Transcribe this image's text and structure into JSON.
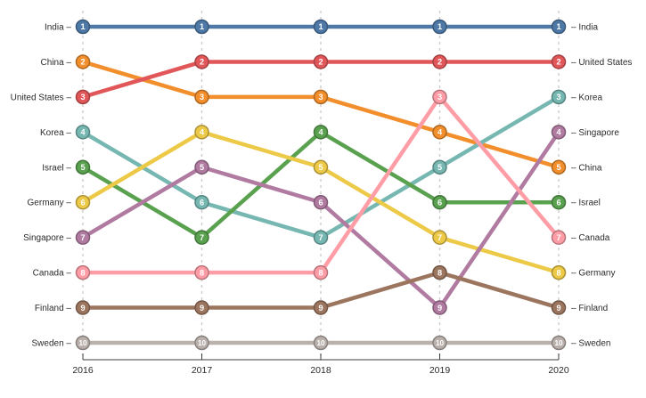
{
  "canvas": {
    "background": "#ffffff"
  },
  "chart_data": {
    "type": "line",
    "variant": "bump-rank-chart",
    "title": "",
    "x_labels": [
      "2016",
      "2017",
      "2018",
      "2019",
      "2020"
    ],
    "y_axis": {
      "label": "",
      "type": "rank",
      "range": [
        1,
        10
      ],
      "inverted": true,
      "ticks_hidden": true
    },
    "grid": {
      "vertical_dashed": true,
      "color": "#cccccc"
    },
    "axis_color": "#3c3c3c",
    "label_color": "#2b2b2b",
    "node_text_color": "#ffffff",
    "labels": {
      "left_suffix": " –",
      "right_prefix": "– "
    },
    "legend": "inline-left-right",
    "series": [
      {
        "name": "India",
        "color": "#4e79a7",
        "ranks": [
          1,
          1,
          1,
          1,
          1
        ]
      },
      {
        "name": "China",
        "color": "#f28e2b",
        "ranks": [
          2,
          3,
          3,
          4,
          5
        ]
      },
      {
        "name": "United States",
        "color": "#e15759",
        "ranks": [
          3,
          2,
          2,
          2,
          2
        ]
      },
      {
        "name": "Korea",
        "color": "#76b7b2",
        "ranks": [
          4,
          6,
          7,
          5,
          3
        ]
      },
      {
        "name": "Israel",
        "color": "#59a14f",
        "ranks": [
          5,
          7,
          4,
          6,
          6
        ]
      },
      {
        "name": "Germany",
        "color": "#edc948",
        "ranks": [
          6,
          4,
          5,
          7,
          8
        ]
      },
      {
        "name": "Singapore",
        "color": "#b07aa1",
        "ranks": [
          7,
          5,
          6,
          9,
          4
        ]
      },
      {
        "name": "Canada",
        "color": "#ff9da7",
        "ranks": [
          8,
          8,
          8,
          3,
          7
        ]
      },
      {
        "name": "Finland",
        "color": "#9c755f",
        "ranks": [
          9,
          9,
          9,
          8,
          9
        ]
      },
      {
        "name": "Sweden",
        "color": "#bab0ac",
        "ranks": [
          10,
          10,
          10,
          10,
          10
        ]
      }
    ]
  }
}
